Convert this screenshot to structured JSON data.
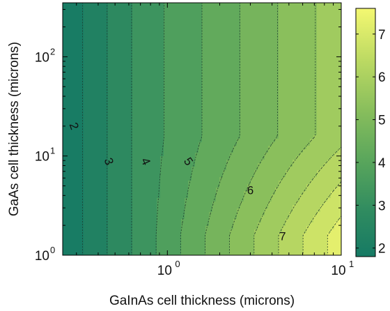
{
  "chart_data": {
    "type": "heatmap",
    "subtype": "filled-contour",
    "title": "",
    "xlabel": "GaInAs cell thickness (microns)",
    "ylabel": "GaAs cell thickness (microns)",
    "x_scale": "log",
    "y_scale": "log",
    "xlim": [
      0.25,
      10
    ],
    "ylim": [
      1,
      350
    ],
    "x_ticks": [
      {
        "value": 1,
        "base": "10",
        "exp": "0"
      },
      {
        "value": 10,
        "base": "10",
        "exp": "1"
      }
    ],
    "y_ticks": [
      {
        "value": 1,
        "base": "10",
        "exp": "0"
      },
      {
        "value": 10,
        "base": "10",
        "exp": "1"
      },
      {
        "value": 100,
        "base": "10",
        "exp": "2"
      }
    ],
    "contour_levels": [
      2,
      2.5,
      3,
      3.5,
      4,
      4.5,
      5,
      5.5,
      6,
      6.5,
      7,
      7.5
    ],
    "contour_labels": [
      {
        "text": "2",
        "x": 0.29,
        "y": 20,
        "angle": 70
      },
      {
        "text": "3",
        "x": 0.46,
        "y": 8.8,
        "angle": 70
      },
      {
        "text": "4",
        "x": 0.75,
        "y": 8.8,
        "angle": 66
      },
      {
        "text": "5",
        "x": 1.32,
        "y": 8.8,
        "angle": 55
      },
      {
        "text": "6",
        "x": 3.0,
        "y": 4.5,
        "angle": 0
      },
      {
        "text": "7",
        "x": 4.6,
        "y": 1.55,
        "angle": 0
      }
    ],
    "colorbar": {
      "min": 1.8,
      "max": 7.6,
      "ticks": [
        "2",
        "3",
        "4",
        "5",
        "6",
        "7"
      ],
      "tick_values": [
        2,
        3,
        4,
        5,
        6,
        7
      ],
      "low_color": "#167a64",
      "high_color": "#f4f871"
    },
    "grid": false,
    "legend": "colorbar-right"
  }
}
